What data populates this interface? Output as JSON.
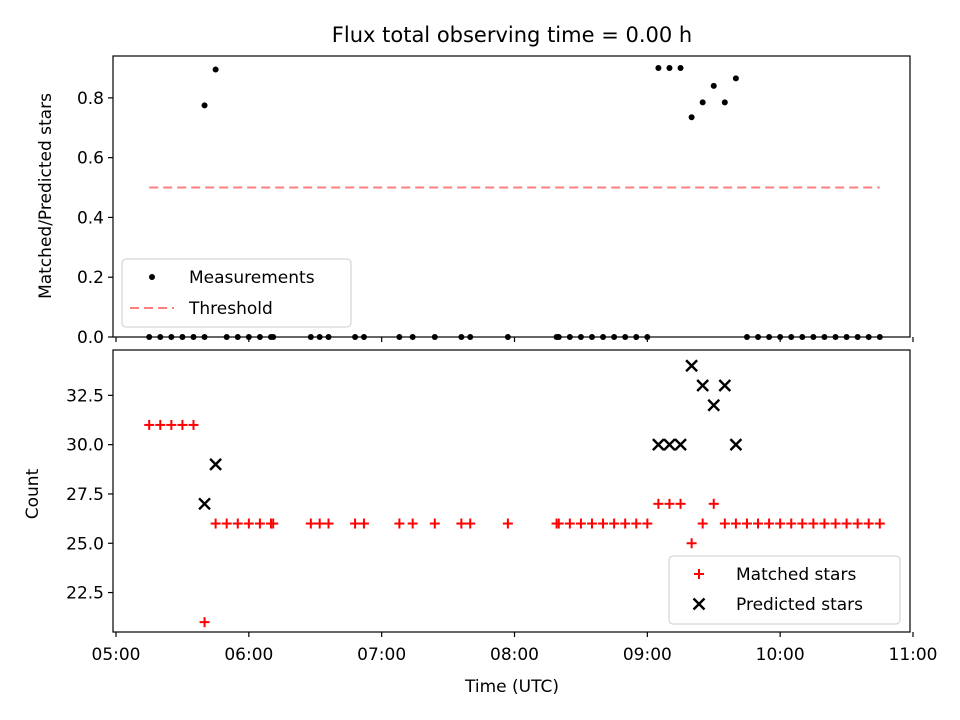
{
  "chart_data": [
    {
      "type": "scatter",
      "title": "Flux total observing time = 0.00 h",
      "xlabel": "",
      "ylabel": "Matched/Predicted stars",
      "xlim": [
        "05:00",
        "11:00"
      ],
      "ylim": [
        0,
        0.94
      ],
      "yticks": [
        "0.0",
        "0.2",
        "0.4",
        "0.6",
        "0.8"
      ],
      "legend_position": "lower-left",
      "series": [
        {
          "name": "Measurements",
          "kind": "points",
          "color": "#000000",
          "points": [
            [
              "05:15",
              0
            ],
            [
              "05:20",
              0
            ],
            [
              "05:25",
              0
            ],
            [
              "05:30",
              0
            ],
            [
              "05:35",
              0
            ],
            [
              "05:40",
              0
            ],
            [
              "05:40",
              0.775
            ],
            [
              "05:45",
              0.895
            ],
            [
              "05:50",
              0
            ],
            [
              "05:55",
              0
            ],
            [
              "06:00",
              0
            ],
            [
              "06:05",
              0
            ],
            [
              "06:10",
              0
            ],
            [
              "06:11",
              0
            ],
            [
              "06:28",
              0
            ],
            [
              "06:32",
              0
            ],
            [
              "06:36",
              0
            ],
            [
              "06:48",
              0
            ],
            [
              "06:52",
              0
            ],
            [
              "07:08",
              0
            ],
            [
              "07:14",
              0
            ],
            [
              "07:24",
              0
            ],
            [
              "07:36",
              0
            ],
            [
              "07:40",
              0
            ],
            [
              "07:57",
              0
            ],
            [
              "08:19",
              0
            ],
            [
              "08:20",
              0
            ],
            [
              "08:25",
              0
            ],
            [
              "08:30",
              0
            ],
            [
              "08:35",
              0
            ],
            [
              "08:40",
              0
            ],
            [
              "08:45",
              0
            ],
            [
              "08:50",
              0
            ],
            [
              "08:55",
              0
            ],
            [
              "09:00",
              0
            ],
            [
              "09:05",
              0.9
            ],
            [
              "09:10",
              0.9
            ],
            [
              "09:15",
              0.9
            ],
            [
              "09:20",
              0.735
            ],
            [
              "09:25",
              0.785
            ],
            [
              "09:30",
              0.84
            ],
            [
              "09:35",
              0.785
            ],
            [
              "09:40",
              0.865
            ],
            [
              "09:45",
              0
            ],
            [
              "09:50",
              0
            ],
            [
              "09:55",
              0
            ],
            [
              "10:00",
              0
            ],
            [
              "10:05",
              0
            ],
            [
              "10:10",
              0
            ],
            [
              "10:15",
              0
            ],
            [
              "10:20",
              0
            ],
            [
              "10:25",
              0
            ],
            [
              "10:30",
              0
            ],
            [
              "10:35",
              0
            ],
            [
              "10:40",
              0
            ],
            [
              "10:45",
              0
            ]
          ]
        },
        {
          "name": "Threshold",
          "kind": "dashed-line",
          "color": "#ff7f7f",
          "points": [
            [
              "05:15",
              0.5
            ],
            [
              "10:45",
              0.5
            ]
          ]
        }
      ]
    },
    {
      "type": "scatter",
      "title": "",
      "xlabel": "Time (UTC)",
      "ylabel": "Count",
      "xlim": [
        "05:00",
        "11:00"
      ],
      "ylim": [
        20.5,
        34.8
      ],
      "yticks": [
        "22.5",
        "25.0",
        "27.5",
        "30.0",
        "32.5"
      ],
      "xticks": [
        "05:00",
        "06:00",
        "07:00",
        "08:00",
        "09:00",
        "10:00",
        "11:00"
      ],
      "legend_position": "lower-right",
      "series": [
        {
          "name": "Matched stars",
          "kind": "plus-markers",
          "color": "#ff0000",
          "points": [
            [
              "05:15",
              31
            ],
            [
              "05:20",
              31
            ],
            [
              "05:25",
              31
            ],
            [
              "05:30",
              31
            ],
            [
              "05:35",
              31
            ],
            [
              "05:40",
              21
            ],
            [
              "05:45",
              26
            ],
            [
              "05:50",
              26
            ],
            [
              "05:55",
              26
            ],
            [
              "06:00",
              26
            ],
            [
              "06:05",
              26
            ],
            [
              "06:10",
              26
            ],
            [
              "06:11",
              26
            ],
            [
              "06:28",
              26
            ],
            [
              "06:32",
              26
            ],
            [
              "06:36",
              26
            ],
            [
              "06:48",
              26
            ],
            [
              "06:52",
              26
            ],
            [
              "07:08",
              26
            ],
            [
              "07:14",
              26
            ],
            [
              "07:24",
              26
            ],
            [
              "07:36",
              26
            ],
            [
              "07:40",
              26
            ],
            [
              "07:57",
              26
            ],
            [
              "08:19",
              26
            ],
            [
              "08:20",
              26
            ],
            [
              "08:25",
              26
            ],
            [
              "08:30",
              26
            ],
            [
              "08:35",
              26
            ],
            [
              "08:40",
              26
            ],
            [
              "08:45",
              26
            ],
            [
              "08:50",
              26
            ],
            [
              "08:55",
              26
            ],
            [
              "09:00",
              26
            ],
            [
              "09:05",
              27
            ],
            [
              "09:10",
              27
            ],
            [
              "09:15",
              27
            ],
            [
              "09:20",
              25
            ],
            [
              "09:25",
              26
            ],
            [
              "09:30",
              27
            ],
            [
              "09:35",
              26
            ],
            [
              "09:40",
              26
            ],
            [
              "09:45",
              26
            ],
            [
              "09:50",
              26
            ],
            [
              "09:55",
              26
            ],
            [
              "10:00",
              26
            ],
            [
              "10:05",
              26
            ],
            [
              "10:10",
              26
            ],
            [
              "10:15",
              26
            ],
            [
              "10:20",
              26
            ],
            [
              "10:25",
              26
            ],
            [
              "10:30",
              26
            ],
            [
              "10:35",
              26
            ],
            [
              "10:40",
              26
            ],
            [
              "10:45",
              26
            ]
          ]
        },
        {
          "name": "Predicted stars",
          "kind": "x-markers",
          "color": "#000000",
          "points": [
            [
              "05:40",
              27
            ],
            [
              "05:45",
              29
            ],
            [
              "09:05",
              30
            ],
            [
              "09:10",
              30
            ],
            [
              "09:15",
              30
            ],
            [
              "09:20",
              34
            ],
            [
              "09:25",
              33
            ],
            [
              "09:30",
              32
            ],
            [
              "09:35",
              33
            ],
            [
              "09:40",
              30
            ]
          ]
        }
      ]
    }
  ]
}
